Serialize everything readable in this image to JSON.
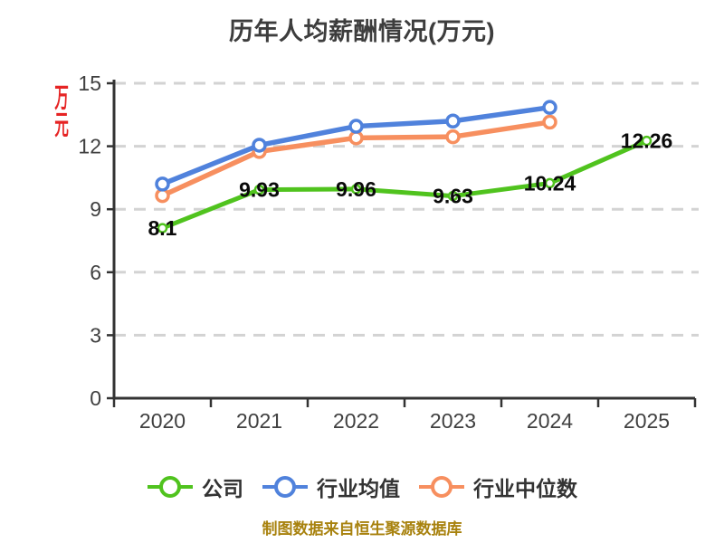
{
  "title": "历年人均薪酬情况(万元)",
  "y_axis_name": "万元",
  "footer_note": "制图数据来自恒生聚源数据库",
  "colors": {
    "company": "#50c31e",
    "industry_avg": "#5082dc",
    "industry_median": "#f78f5f",
    "axis": "#333333",
    "grid": "#d3d3d3",
    "tick_text": "#404040",
    "title_text": "#3d3d3d",
    "data_label": "#0a0a0a",
    "y_axis_name_text": "#e62424",
    "footer_text": "#a8820e",
    "legend_text": "#333333",
    "point_fill": "#ffffff"
  },
  "chart_data": {
    "type": "line",
    "title": "历年人均薪酬情况(万元)",
    "categories": [
      "2020",
      "2021",
      "2022",
      "2023",
      "2024",
      "2025"
    ],
    "series": [
      {
        "name": "公司",
        "color": "#50c31e",
        "values": [
          8.1,
          9.93,
          9.96,
          9.63,
          10.24,
          12.26
        ],
        "labels": [
          "8.1",
          "9.93",
          "9.96",
          "9.63",
          "10.24",
          "12.26"
        ],
        "show_labels": true
      },
      {
        "name": "行业均值",
        "color": "#5082dc",
        "values": [
          10.2,
          12.05,
          12.95,
          13.2,
          13.85,
          null
        ],
        "labels": [],
        "show_labels": false
      },
      {
        "name": "行业中位数",
        "color": "#f78f5f",
        "values": [
          9.65,
          11.75,
          12.4,
          12.45,
          13.15,
          null
        ],
        "labels": [],
        "show_labels": false
      }
    ],
    "xlabel": "",
    "ylabel": "万元",
    "ylim": [
      0,
      15
    ],
    "yticks": [
      0,
      3,
      6,
      9,
      12,
      15
    ],
    "grid": "horizontal-dashed",
    "legend_position": "bottom",
    "legend": [
      "公司",
      "行业均值",
      "行业中位数"
    ]
  }
}
